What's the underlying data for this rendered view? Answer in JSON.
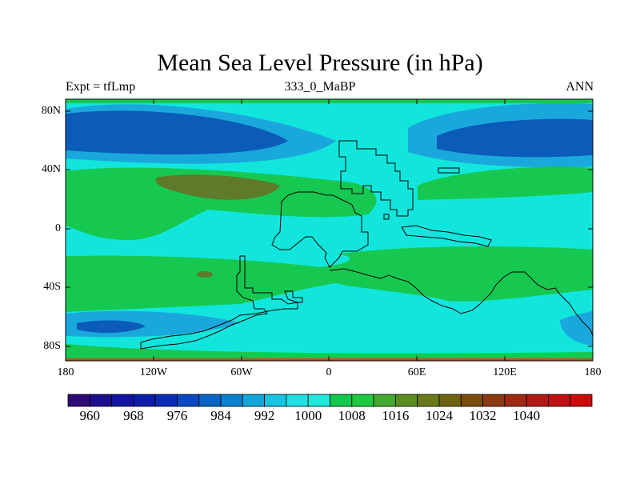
{
  "title": "Mean Sea Level Pressure (in hPa)",
  "subtitle_left": "Expt = tfLmp",
  "subtitle_center": "333_0_MaBP",
  "subtitle_right": "ANN",
  "y_ticks": [
    "80N",
    "40N",
    "0",
    "40S",
    "80S"
  ],
  "x_ticks": [
    "180",
    "120W",
    "60W",
    "0",
    "60E",
    "120E",
    "180"
  ],
  "colorbar": {
    "colors": [
      "#2e0a73",
      "#1b0f8c",
      "#1414a0",
      "#0c1ea6",
      "#0a2cb4",
      "#0a48c0",
      "#0a64c4",
      "#0a80cc",
      "#12a6d8",
      "#18c4e0",
      "#1ee0e2",
      "#1ee8dc",
      "#12c84e",
      "#1ec840",
      "#46a82e",
      "#5a8c20",
      "#6a7a1a",
      "#6e6414",
      "#7a4c10",
      "#8c3a10",
      "#9e2a12",
      "#b01c14",
      "#c01014",
      "#cc0a0a"
    ],
    "labels": [
      "960",
      "968",
      "976",
      "984",
      "992",
      "1000",
      "1008",
      "1016",
      "1024",
      "1032",
      "1040"
    ]
  },
  "colors": {
    "ocean_cyan": "#12e6dc",
    "deep_blue": "#0a5cb8",
    "mid_blue": "#1aa8dc",
    "green": "#16c850",
    "olive": "#5e7a2a",
    "coast": "#000000"
  }
}
